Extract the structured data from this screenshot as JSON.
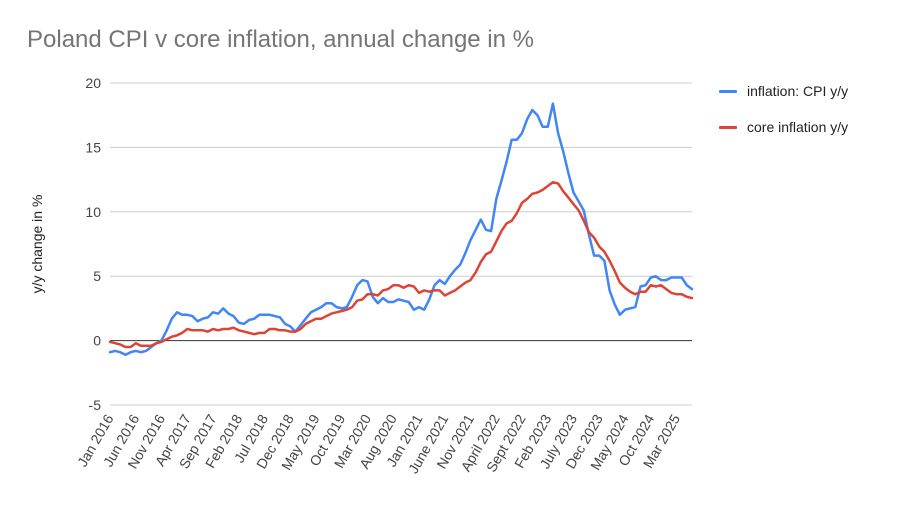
{
  "chart_data": {
    "type": "line",
    "title": "Poland CPI v core inflation, annual change in %",
    "ylabel": "y/y change in %",
    "xlabel": "",
    "ylim": [
      -5,
      20
    ],
    "yticks": [
      -5,
      0,
      5,
      10,
      15,
      20
    ],
    "x_tick_labels": [
      "Jan 2016",
      "Jun 2016",
      "Nov 2016",
      "Apr 2017",
      "Sep 2017",
      "Feb 2018",
      "Jul 2018",
      "Dec 2018",
      "May 2019",
      "Oct 2019",
      "Mar 2020",
      "Aug 2020",
      "Jan 2021",
      "June 2021",
      "Nov 2021",
      "April 2022",
      "Sept 2022",
      "Feb 2023",
      "July 2023",
      "Dec 2023",
      "May 2024",
      "Oct 2024",
      "Mar 2025"
    ],
    "x_start": "Jan 2016",
    "x_end": "Apr 2025",
    "grid": true,
    "legend_position": "right",
    "series": [
      {
        "name": "inflation: CPI y/y",
        "color": "#4285f4",
        "values": [
          -0.9,
          -0.8,
          -0.9,
          -1.1,
          -0.9,
          -0.8,
          -0.9,
          -0.8,
          -0.5,
          -0.2,
          0.0,
          0.8,
          1.7,
          2.2,
          2.0,
          2.0,
          1.9,
          1.5,
          1.7,
          1.8,
          2.2,
          2.1,
          2.5,
          2.1,
          1.9,
          1.4,
          1.3,
          1.6,
          1.7,
          2.0,
          2.0,
          2.0,
          1.9,
          1.8,
          1.3,
          1.1,
          0.7,
          1.2,
          1.7,
          2.2,
          2.4,
          2.6,
          2.9,
          2.9,
          2.6,
          2.5,
          2.6,
          3.4,
          4.3,
          4.7,
          4.6,
          3.4,
          2.9,
          3.3,
          3.0,
          3.0,
          3.2,
          3.1,
          3.0,
          2.4,
          2.6,
          2.4,
          3.2,
          4.3,
          4.7,
          4.4,
          5.0,
          5.5,
          5.9,
          6.8,
          7.8,
          8.6,
          9.4,
          8.6,
          8.5,
          11.0,
          12.4,
          13.9,
          15.6,
          15.6,
          16.1,
          17.2,
          17.9,
          17.5,
          16.6,
          16.6,
          18.4,
          16.1,
          14.7,
          13.0,
          11.5,
          10.8,
          10.1,
          8.2,
          6.6,
          6.6,
          6.2,
          3.9,
          2.8,
          2.0,
          2.4,
          2.5,
          2.6,
          4.2,
          4.3,
          4.9,
          5.0,
          4.7,
          4.7,
          4.9,
          4.9,
          4.9,
          4.3,
          4.0
        ]
      },
      {
        "name": "core inflation y/y",
        "color": "#db4437",
        "values": [
          -0.1,
          -0.2,
          -0.3,
          -0.5,
          -0.5,
          -0.2,
          -0.4,
          -0.4,
          -0.4,
          -0.2,
          -0.1,
          0.1,
          0.3,
          0.4,
          0.6,
          0.9,
          0.8,
          0.8,
          0.8,
          0.7,
          0.9,
          0.8,
          0.9,
          0.9,
          1.0,
          0.8,
          0.7,
          0.6,
          0.5,
          0.6,
          0.6,
          0.9,
          0.9,
          0.8,
          0.8,
          0.7,
          0.7,
          0.9,
          1.3,
          1.5,
          1.7,
          1.7,
          1.9,
          2.1,
          2.2,
          2.3,
          2.4,
          2.6,
          3.1,
          3.2,
          3.6,
          3.6,
          3.5,
          3.9,
          4.0,
          4.3,
          4.3,
          4.1,
          4.3,
          4.2,
          3.7,
          3.9,
          3.8,
          3.9,
          3.9,
          3.5,
          3.7,
          3.9,
          4.2,
          4.5,
          4.7,
          5.3,
          6.1,
          6.7,
          6.9,
          7.7,
          8.5,
          9.1,
          9.3,
          9.9,
          10.7,
          11.0,
          11.4,
          11.5,
          11.7,
          12.0,
          12.3,
          12.2,
          11.6,
          11.1,
          10.6,
          10.1,
          9.3,
          8.4,
          8.0,
          7.3,
          6.9,
          6.2,
          5.4,
          4.5,
          4.1,
          3.8,
          3.6,
          3.8,
          3.8,
          4.3,
          4.2,
          4.3,
          4.0,
          3.7,
          3.6,
          3.6,
          3.4,
          3.3
        ]
      }
    ]
  }
}
